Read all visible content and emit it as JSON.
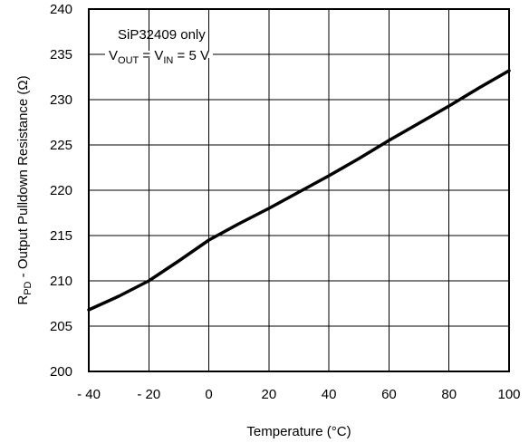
{
  "chart_data": {
    "type": "line",
    "xlabel": "Temperature (°C)",
    "ylabel": {
      "prefix": "R",
      "sub": "PD",
      "suffix": " - Output Pulldown Resistance (Ω)"
    },
    "xlim": [
      -40,
      100
    ],
    "ylim": [
      200,
      240
    ],
    "xticks": [
      -40,
      -20,
      0,
      20,
      40,
      60,
      80,
      100
    ],
    "xtick_labels": [
      "- 40",
      "- 20",
      "0",
      "20",
      "40",
      "60",
      "80",
      "100"
    ],
    "yticks": [
      200,
      205,
      210,
      215,
      220,
      225,
      230,
      235,
      240
    ],
    "ytick_labels": [
      "200",
      "205",
      "210",
      "215",
      "220",
      "225",
      "230",
      "235",
      "240"
    ],
    "grid": true,
    "annotation": {
      "line1": "SiP32409 only",
      "line2_parts": [
        "V",
        "OUT",
        " = V",
        "IN",
        " = 5 V"
      ]
    },
    "series": [
      {
        "x": [
          -40,
          -30,
          -20,
          -10,
          0,
          10,
          20,
          30,
          40,
          50,
          60,
          70,
          80,
          90,
          100
        ],
        "y": [
          206.8,
          208.3,
          210.0,
          212.2,
          214.5,
          216.3,
          218.0,
          219.8,
          221.6,
          223.5,
          225.5,
          227.4,
          229.3,
          231.3,
          233.2
        ]
      }
    ]
  }
}
